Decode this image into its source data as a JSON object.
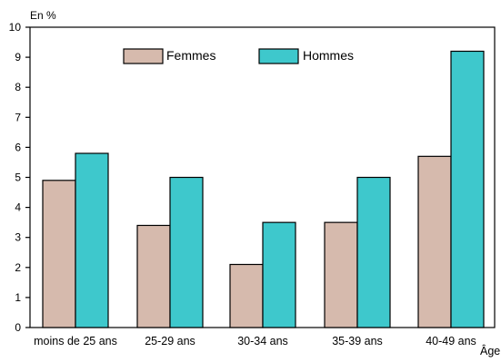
{
  "chart_data": {
    "type": "bar",
    "unit_label": "En %",
    "xlabel": "Âge",
    "ylabel": "",
    "ylim": [
      0,
      10
    ],
    "yticks": [
      0,
      1,
      2,
      3,
      4,
      5,
      6,
      7,
      8,
      9,
      10
    ],
    "grid": false,
    "legend_position": "top-center",
    "categories": [
      "moins de 25 ans",
      "25-29 ans",
      "30-34 ans",
      "35-39 ans",
      "40-49 ans"
    ],
    "series": [
      {
        "name": "Femmes",
        "color": "#d6baad",
        "values": [
          4.9,
          3.4,
          2.1,
          3.5,
          5.7
        ]
      },
      {
        "name": "Hommes",
        "color": "#3ec8cc",
        "values": [
          5.8,
          5.0,
          3.5,
          5.0,
          9.2
        ]
      }
    ]
  }
}
